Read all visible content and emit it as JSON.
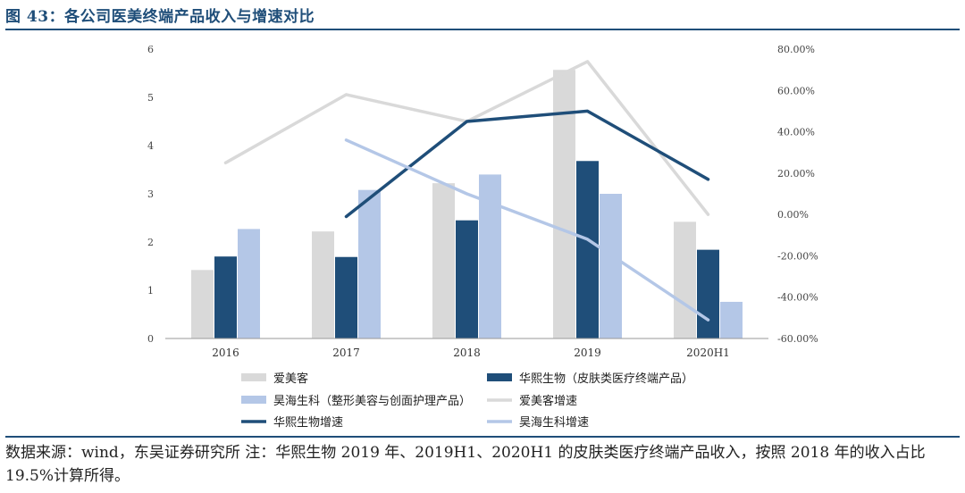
{
  "title": "图 43：各公司医美终端产品收入与增速对比",
  "source_note": "数据来源：wind，东吴证券研究所 注：华熙生物 2019 年、2019H1、2020H1 的皮肤类医疗终端产品收入，按照 2018 年的收入占比 19.5%计算所得。",
  "colors": {
    "aimeike": "#d9d9d9",
    "huaxi": "#1f4e79",
    "haohai": "#b4c7e7",
    "axis": "#9a9a9a",
    "title": "#1f4e79"
  },
  "chart_data": {
    "type": "bar+line",
    "categories": [
      "2016",
      "2017",
      "2018",
      "2019",
      "2020H1"
    ],
    "left_axis": {
      "ylim": [
        0,
        6
      ],
      "ticks": [
        "0",
        "1",
        "2",
        "3",
        "4",
        "5",
        "6"
      ]
    },
    "right_axis": {
      "ylim": [
        -0.6,
        0.8
      ],
      "ticks": [
        "-60.00%",
        "-40.00%",
        "-20.00%",
        "0.00%",
        "20.00%",
        "40.00%",
        "60.00%",
        "80.00%"
      ]
    },
    "bar_series": [
      {
        "name": "爱美客",
        "color": "#d9d9d9",
        "values": [
          1.42,
          2.22,
          3.22,
          5.57,
          2.42
        ]
      },
      {
        "name": "华熙生物（皮肤类医疗终端产品）",
        "color": "#1f4e79",
        "values": [
          1.7,
          1.69,
          2.45,
          3.68,
          1.84
        ]
      },
      {
        "name": "昊海生科（整形美容与创面护理产品）",
        "color": "#b4c7e7",
        "values": [
          2.27,
          3.08,
          3.4,
          3.0,
          0.76
        ]
      }
    ],
    "line_series": [
      {
        "name": "爱美客增速",
        "color": "#d9d9d9",
        "values": [
          0.25,
          0.58,
          0.45,
          0.74,
          0.0
        ]
      },
      {
        "name": "华熙生物增速",
        "color": "#1f4e79",
        "values": [
          null,
          -0.01,
          0.45,
          0.5,
          0.17
        ]
      },
      {
        "name": "昊海生科增速",
        "color": "#b4c7e7",
        "values": [
          null,
          0.36,
          0.1,
          -0.12,
          -0.51
        ]
      }
    ],
    "legend": {
      "placement": "bottom",
      "items": [
        {
          "label": "爱美客",
          "kind": "bar",
          "color": "#d9d9d9"
        },
        {
          "label": "华熙生物（皮肤类医疗终端产品）",
          "kind": "bar",
          "color": "#1f4e79"
        },
        {
          "label": "昊海生科（整形美容与创面护理产品）",
          "kind": "bar",
          "color": "#b4c7e7"
        },
        {
          "label": "爱美客增速",
          "kind": "line",
          "color": "#d9d9d9"
        },
        {
          "label": "华熙生物增速",
          "kind": "line",
          "color": "#1f4e79"
        },
        {
          "label": "昊海生科增速",
          "kind": "line",
          "color": "#b4c7e7"
        }
      ]
    },
    "grid": false
  }
}
